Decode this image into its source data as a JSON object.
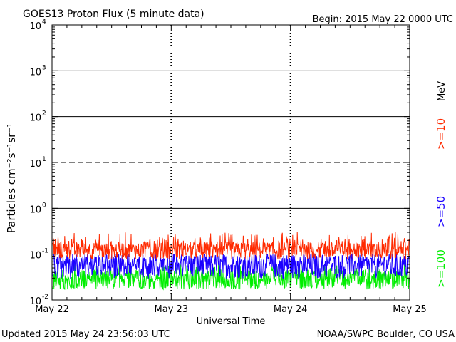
{
  "chart_data": {
    "type": "line",
    "title": "GOES13 Proton Flux (5 minute data)",
    "begin_label": "Begin: 2015 May 22 0000 UTC",
    "xlabel": "Universal Time",
    "ylabel": "Particles cm⁻²s⁻¹sr⁻¹",
    "y_scale": "log",
    "ylim": [
      0.01,
      10000
    ],
    "y_ticks": [
      {
        "base": "10",
        "exp": "-2"
      },
      {
        "base": "10",
        "exp": "-1"
      },
      {
        "base": "10",
        "exp": "0"
      },
      {
        "base": "10",
        "exp": "1"
      },
      {
        "base": "10",
        "exp": "2"
      },
      {
        "base": "10",
        "exp": "3"
      },
      {
        "base": "10",
        "exp": "4"
      }
    ],
    "x_ticks": [
      "May 22",
      "May 23",
      "May 24",
      "May 25"
    ],
    "reference_lines": [
      {
        "value": 10,
        "style": "dashed"
      },
      {
        "value": 1,
        "style": "solid"
      },
      {
        "value": 100,
        "style": "solid"
      },
      {
        "value": 1000,
        "style": "solid"
      }
    ],
    "series": [
      {
        "name": ">=10",
        "color": "#ff2a00",
        "typical_value": 0.12,
        "low": 0.07,
        "high": 0.3
      },
      {
        "name": ">=50",
        "color": "#1a00ff",
        "typical_value": 0.055,
        "low": 0.025,
        "high": 0.1
      },
      {
        "name": ">=100",
        "color": "#00ee00",
        "typical_value": 0.028,
        "low": 0.015,
        "high": 0.06
      }
    ],
    "unit_label": "MeV",
    "grid": false
  },
  "footer": {
    "updated": "Updated 2015 May 24 23:56:03 UTC",
    "source": "NOAA/SWPC Boulder, CO USA"
  }
}
